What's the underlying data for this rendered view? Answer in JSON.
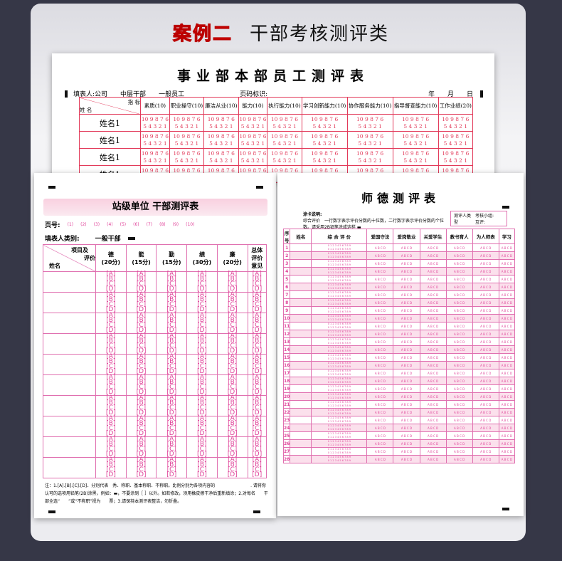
{
  "headline": {
    "case": "案例二",
    "title": "干部考核测评类"
  },
  "back_sheet": {
    "title": "事业部本部员工测评表",
    "filler": "填表人:公司",
    "opt1": "中层干部",
    "opt2": "一般员工",
    "page_mark": "页码标识:",
    "date": "年　　月　　日",
    "corner_top": "指 标",
    "corner_bottom": "姓 名",
    "columns": [
      "素质(10)",
      "职业操守(10)",
      "廉洁从业(10)",
      "能力(10)",
      "执行能力(10)",
      "学习创新能力(10)",
      "协作服务能力(10)",
      "指导督查能力(10)",
      "工作业绩(20)"
    ],
    "rows": [
      "姓名1",
      "姓名1",
      "姓名1",
      "姓名1"
    ],
    "bubbles_top": "10 9 8 7 6",
    "bubbles_bottom": "5 4 3 2 1"
  },
  "left_sheet": {
    "title": "站级单位 干部测评表",
    "page_label": "页号:",
    "pages": [
      "(1)",
      "(2)",
      "(3)",
      "(4)",
      "(5)",
      "(6)",
      "(7)",
      "(8)",
      "(9)",
      "(10)"
    ],
    "filler_label": "填表人类别:",
    "filler_value": "一般干部",
    "corner_top": "项目及",
    "corner_mid": "评价",
    "corner_bottom": "姓名",
    "columns": [
      "德\n(20分)",
      "能\n(15分)",
      "勤\n(15分)",
      "绩\n(30分)",
      "廉\n(20分)",
      "总体\n评价\n意见"
    ],
    "options": [
      "[A]",
      "[B]",
      "[C]",
      "[D]"
    ],
    "note": "注：1.[A].[B].[C].[D]．分别代表　秀、称职、基本称职、不称职。比例分别为各项内容的　　　　　　　　 . 请将你认可的选项用铅笔(2B)涂黑，例如：▬，不要涂到［ ］以外。如若修改，须用橡皮擦干净后重新填涂；2.对每名　　干部全选“　　”或“不称职”视为　　票；3.请保持本测评表整洁，勿折叠。"
  },
  "right_sheet": {
    "title": "师德测评表",
    "desc_label": "涂卡说明:",
    "desc": "综合评价　一行数字表示评价分数的十位数，二行数字表示评价分数的个位数。请采用2B铅笔涂成这样 ▬",
    "type_label": "测评人类型",
    "type_opts": [
      "考核小组:",
      "互评:"
    ],
    "columns": [
      "序号",
      "姓名",
      "综 合 评 价",
      "爱国守法",
      "爱岗敬业",
      "关爱学生",
      "教书育人",
      "为人师表",
      "学习"
    ],
    "digits": "0 1 2 3 4 5 6 7 8 9",
    "abcd": "A B C D",
    "rows": [
      "1",
      "2",
      "3",
      "4",
      "5",
      "6",
      "7",
      "8",
      "9",
      "10",
      "11",
      "12",
      "13",
      "14",
      "15",
      "16",
      "17",
      "18",
      "19",
      "20",
      "21",
      "22",
      "23",
      "24",
      "25",
      "26",
      "27",
      "28"
    ]
  },
  "colors": {
    "background": "#363747",
    "accent_red": "#ff1b1b",
    "form_red": "#e23a5a",
    "form_pink": "#e0449a"
  }
}
